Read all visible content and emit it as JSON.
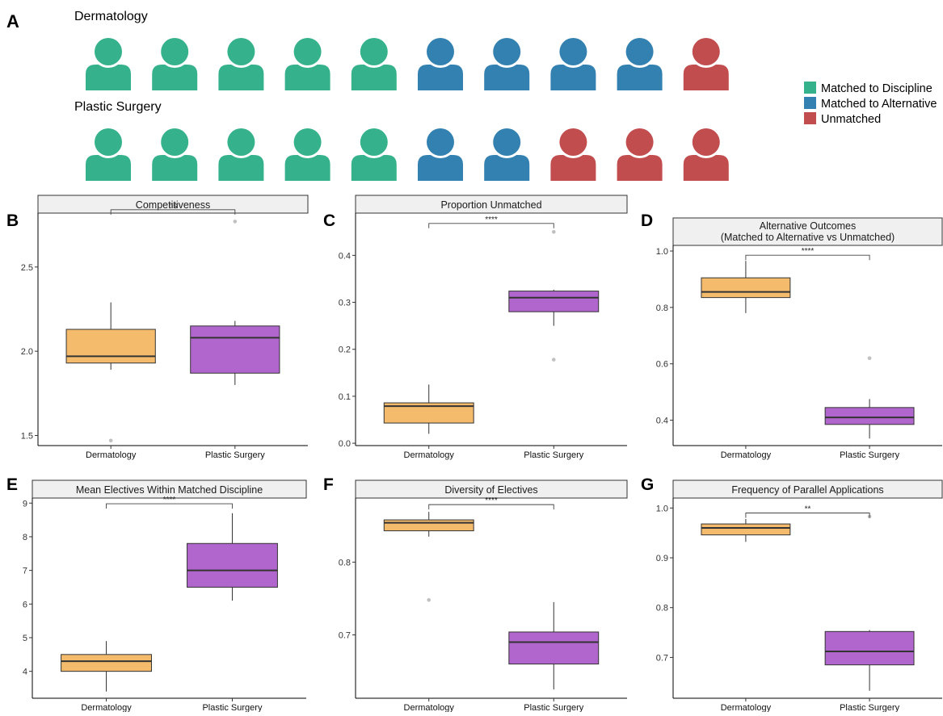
{
  "panel_letters": {
    "A": "A",
    "B": "B",
    "C": "C",
    "D": "D",
    "E": "E",
    "F": "F",
    "G": "G"
  },
  "panel_a": {
    "rows": [
      {
        "label": "Dermatology",
        "outcomes": [
          "matched",
          "matched",
          "matched",
          "matched",
          "matched",
          "alternative",
          "alternative",
          "alternative",
          "alternative",
          "unmatched"
        ]
      },
      {
        "label": "Plastic Surgery",
        "outcomes": [
          "matched",
          "matched",
          "matched",
          "matched",
          "matched",
          "alternative",
          "alternative",
          "unmatched",
          "unmatched",
          "unmatched"
        ]
      }
    ],
    "legend": [
      {
        "key": "matched",
        "label": "Matched to Discipline",
        "color": "#35b28c"
      },
      {
        "key": "alternative",
        "label": "Matched to Alternative",
        "color": "#3381b0"
      },
      {
        "key": "unmatched",
        "label": "Unmatched",
        "color": "#c24d4f"
      }
    ],
    "icon_name": "person-icon"
  },
  "colors": {
    "Dermatology": "#f3bb6b",
    "Plastic Surgery": "#b066cc",
    "outlier": "#c0c0c0",
    "strip": "#f0f0f0"
  },
  "chart_data": [
    {
      "panel": "B",
      "type": "box",
      "title": "Competitiveness",
      "categories": [
        "Dermatology",
        "Plastic Surgery"
      ],
      "ylim": [
        1.44,
        2.82
      ],
      "yticks": [
        1.5,
        2.0,
        2.5
      ],
      "ytick_labels": [
        "1.5",
        "2.0",
        "2.5"
      ],
      "boxes": [
        {
          "category": "Dermatology",
          "q1": 1.93,
          "median": 1.97,
          "q3": 2.13,
          "whisker_low": 1.89,
          "whisker_high": 2.29,
          "outliers": [
            1.47
          ]
        },
        {
          "category": "Plastic Surgery",
          "q1": 1.87,
          "median": 2.08,
          "q3": 2.15,
          "whisker_low": 1.8,
          "whisker_high": 2.18,
          "outliers": [
            2.77
          ]
        }
      ],
      "significance": "ns",
      "bracket_y": 2.84
    },
    {
      "panel": "C",
      "type": "box",
      "title": "Proportion Unmatched",
      "categories": [
        "Dermatology",
        "Plastic Surgery"
      ],
      "ylim": [
        -0.005,
        0.49
      ],
      "yticks": [
        0.0,
        0.1,
        0.2,
        0.3,
        0.4
      ],
      "ytick_labels": [
        "0.0",
        "0.1",
        "0.2",
        "0.3",
        "0.4"
      ],
      "boxes": [
        {
          "category": "Dermatology",
          "q1": 0.043,
          "median": 0.079,
          "q3": 0.086,
          "whisker_low": 0.02,
          "whisker_high": 0.125,
          "outliers": []
        },
        {
          "category": "Plastic Surgery",
          "q1": 0.28,
          "median": 0.31,
          "q3": 0.324,
          "whisker_low": 0.25,
          "whisker_high": 0.327,
          "outliers": [
            0.45,
            0.178
          ]
        }
      ],
      "significance": "****",
      "bracket_y": 0.468
    },
    {
      "panel": "D",
      "type": "box",
      "title": "Alternative Outcomes\n(Matched to Alternative vs Unmatched)",
      "categories": [
        "Dermatology",
        "Plastic Surgery"
      ],
      "ylim": [
        0.31,
        1.02
      ],
      "yticks": [
        0.4,
        0.6,
        0.8,
        1.0
      ],
      "ytick_labels": [
        "0.4",
        "0.6",
        "0.8",
        "1.0"
      ],
      "boxes": [
        {
          "category": "Dermatology",
          "q1": 0.835,
          "median": 0.855,
          "q3": 0.905,
          "whisker_low": 0.78,
          "whisker_high": 0.965,
          "outliers": []
        },
        {
          "category": "Plastic Surgery",
          "q1": 0.385,
          "median": 0.41,
          "q3": 0.445,
          "whisker_low": 0.335,
          "whisker_high": 0.475,
          "outliers": [
            0.62
          ]
        }
      ],
      "significance": "****",
      "bracket_y": 0.985
    },
    {
      "panel": "E",
      "type": "box",
      "title": "Mean Electives Within Matched Discipline",
      "categories": [
        "Dermatology",
        "Plastic Surgery"
      ],
      "ylim": [
        3.2,
        9.15
      ],
      "yticks": [
        4,
        5,
        6,
        7,
        8,
        9
      ],
      "ytick_labels": [
        "4",
        "5",
        "6",
        "7",
        "8",
        "9"
      ],
      "boxes": [
        {
          "category": "Dermatology",
          "q1": 4.0,
          "median": 4.3,
          "q3": 4.5,
          "whisker_low": 3.4,
          "whisker_high": 4.9,
          "outliers": []
        },
        {
          "category": "Plastic Surgery",
          "q1": 6.5,
          "median": 7.0,
          "q3": 7.8,
          "whisker_low": 6.1,
          "whisker_high": 8.7,
          "outliers": []
        }
      ],
      "significance": "****",
      "bracket_y": 8.98
    },
    {
      "panel": "F",
      "type": "box",
      "title": "Diversity of Electives",
      "categories": [
        "Dermatology",
        "Plastic Surgery"
      ],
      "ylim": [
        0.613,
        0.888
      ],
      "yticks": [
        0.7,
        0.8
      ],
      "ytick_labels": [
        "0.7",
        "0.8"
      ],
      "boxes": [
        {
          "category": "Dermatology",
          "q1": 0.843,
          "median": 0.854,
          "q3": 0.858,
          "whisker_low": 0.835,
          "whisker_high": 0.869,
          "outliers": [
            0.748
          ]
        },
        {
          "category": "Plastic Surgery",
          "q1": 0.66,
          "median": 0.69,
          "q3": 0.704,
          "whisker_low": 0.625,
          "whisker_high": 0.745,
          "outliers": []
        }
      ],
      "significance": "****",
      "bracket_y": 0.879
    },
    {
      "panel": "G",
      "type": "box",
      "title": "Frequency of Parallel Applications",
      "categories": [
        "Dermatology",
        "Plastic Surgery"
      ],
      "ylim": [
        0.618,
        1.02
      ],
      "yticks": [
        0.7,
        0.8,
        0.9,
        1.0
      ],
      "ytick_labels": [
        "0.7",
        "0.8",
        "0.9",
        "1.0"
      ],
      "boxes": [
        {
          "category": "Dermatology",
          "q1": 0.946,
          "median": 0.96,
          "q3": 0.968,
          "whisker_low": 0.932,
          "whisker_high": 0.978,
          "outliers": []
        },
        {
          "category": "Plastic Surgery",
          "q1": 0.685,
          "median": 0.712,
          "q3": 0.752,
          "whisker_low": 0.633,
          "whisker_high": 0.755,
          "outliers": [
            0.983
          ]
        }
      ],
      "significance": "**",
      "bracket_y": 0.99
    }
  ]
}
